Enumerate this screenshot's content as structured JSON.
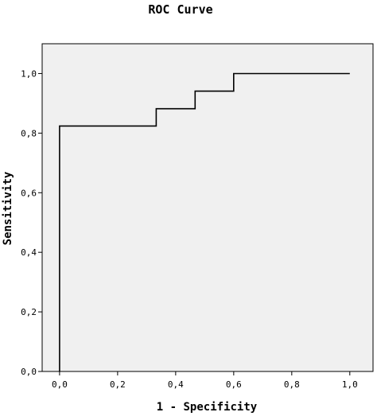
{
  "chart_data": {
    "type": "line",
    "title": "ROC Curve",
    "xlabel": "1 - Specificity",
    "ylabel": "Sensitivity",
    "xlim": [
      -0.06,
      1.08
    ],
    "ylim": [
      0.0,
      1.1
    ],
    "x_ticks": [
      "0,0",
      "0,2",
      "0,4",
      "0,6",
      "0,8",
      "1,0"
    ],
    "y_ticks": [
      "0,0",
      "0,2",
      "0,4",
      "0,6",
      "0,8",
      "1,0"
    ],
    "grid": false,
    "series": [
      {
        "x": [
          0.0,
          0.0,
          0.333,
          0.333,
          0.467,
          0.467,
          0.6,
          0.6,
          1.0
        ],
        "y": [
          0.0,
          0.824,
          0.824,
          0.882,
          0.882,
          0.941,
          0.941,
          1.0,
          1.0
        ],
        "color": "#000000"
      }
    ],
    "plot_background": "#f0f0f0"
  }
}
